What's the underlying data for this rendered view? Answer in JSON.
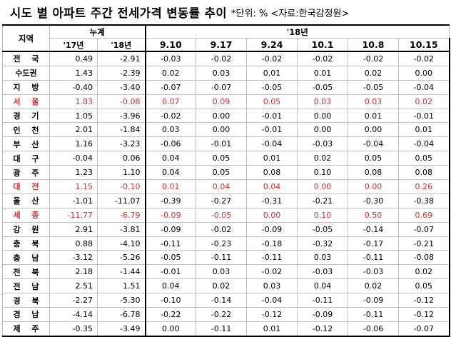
{
  "title": {
    "main": "시도 별 아파트 주간 전세가격 변동률 추이",
    "unit_note": "*단위: % <자료:한국감정원>"
  },
  "table": {
    "region_header": "지역",
    "accumulated_header": "누계",
    "year18_header": "'18년",
    "acc_columns": [
      "'17년",
      "'18년"
    ],
    "week_columns": [
      "9.10",
      "9.17",
      "9.24",
      "10.1",
      "10.8",
      "10.15"
    ],
    "rows": [
      {
        "region": "전 국",
        "acc": [
          "0.49",
          "-2.91"
        ],
        "weeks": [
          "-0.03",
          "-0.02",
          "-0.02",
          "-0.02",
          "-0.02",
          "-0.02"
        ],
        "highlight": false
      },
      {
        "region": "수도권",
        "acc": [
          "1.43",
          "-2.39"
        ],
        "weeks": [
          "0.02",
          "0.03",
          "0.01",
          "0.01",
          "0.02",
          "0.00"
        ],
        "highlight": false
      },
      {
        "region": "지 방",
        "acc": [
          "-0.40",
          "-3.40"
        ],
        "weeks": [
          "-0.07",
          "-0.07",
          "-0.05",
          "-0.05",
          "-0.05",
          "-0.04"
        ],
        "highlight": false
      },
      {
        "region": "서 울",
        "acc": [
          "1.83",
          "-0.08"
        ],
        "weeks": [
          "0.07",
          "0.09",
          "0.05",
          "0.03",
          "0.03",
          "0.02"
        ],
        "highlight": true
      },
      {
        "region": "경 기",
        "acc": [
          "1.05",
          "-3.96"
        ],
        "weeks": [
          "-0.02",
          "0.00",
          "-0.01",
          "0.00",
          "0.01",
          "-0.01"
        ],
        "highlight": false
      },
      {
        "region": "인 천",
        "acc": [
          "2.01",
          "-1.84"
        ],
        "weeks": [
          "0.03",
          "0.00",
          "-0.01",
          "0.00",
          "0.00",
          "0.01"
        ],
        "highlight": false
      },
      {
        "region": "부 산",
        "acc": [
          "1.16",
          "-3.23"
        ],
        "weeks": [
          "-0.06",
          "-0.01",
          "-0.04",
          "-0.03",
          "-0.04",
          "-0.04"
        ],
        "highlight": false
      },
      {
        "region": "대 구",
        "acc": [
          "-0.04",
          "0.06"
        ],
        "weeks": [
          "0.04",
          "0.05",
          "0.01",
          "0.02",
          "0.05",
          "0.05"
        ],
        "highlight": false
      },
      {
        "region": "광 주",
        "acc": [
          "1.23",
          "1.10"
        ],
        "weeks": [
          "0.04",
          "0.05",
          "0.08",
          "0.10",
          "0.08",
          "0.08"
        ],
        "highlight": false
      },
      {
        "region": "대 전",
        "acc": [
          "1.15",
          "-0.10"
        ],
        "weeks": [
          "0.01",
          "0.04",
          "0.04",
          "0.00",
          "0.00",
          "0.26"
        ],
        "highlight": true
      },
      {
        "region": "울 산",
        "acc": [
          "-1.01",
          "-11.07"
        ],
        "weeks": [
          "-0.39",
          "-0.27",
          "-0.31",
          "-0.21",
          "-0.30",
          "-0.38"
        ],
        "highlight": false
      },
      {
        "region": "세 종",
        "acc": [
          "-11.77",
          "-6.79"
        ],
        "weeks": [
          "-0.09",
          "-0.05",
          "0.00",
          "0.10",
          "0.50",
          "0.69"
        ],
        "highlight": true
      },
      {
        "region": "강 원",
        "acc": [
          "2.91",
          "-3.81"
        ],
        "weeks": [
          "-0.09",
          "-0.02",
          "-0.09",
          "-0.05",
          "-0.14",
          "-0.07"
        ],
        "highlight": false
      },
      {
        "region": "충 북",
        "acc": [
          "0.88",
          "-4.10"
        ],
        "weeks": [
          "-0.11",
          "-0.23",
          "-0.18",
          "-0.32",
          "-0.17",
          "-0.21"
        ],
        "highlight": false
      },
      {
        "region": "충 남",
        "acc": [
          "-3.12",
          "-5.26"
        ],
        "weeks": [
          "-0.05",
          "-0.11",
          "-0.11",
          "0.03",
          "-0.11",
          "-0.08"
        ],
        "highlight": false
      },
      {
        "region": "전 북",
        "acc": [
          "2.18",
          "-1.44"
        ],
        "weeks": [
          "-0.01",
          "0.03",
          "-0.02",
          "-0.03",
          "-0.03",
          "0.02"
        ],
        "highlight": false
      },
      {
        "region": "전 남",
        "acc": [
          "2.51",
          "1.51"
        ],
        "weeks": [
          "0.04",
          "0.02",
          "0.03",
          "0.04",
          "0.02",
          "0.05"
        ],
        "highlight": false
      },
      {
        "region": "경 북",
        "acc": [
          "-2.27",
          "-5.30"
        ],
        "weeks": [
          "-0.10",
          "-0.14",
          "-0.04",
          "-0.11",
          "-0.09",
          "-0.12"
        ],
        "highlight": false
      },
      {
        "region": "경 남",
        "acc": [
          "-4.14",
          "-6.78"
        ],
        "weeks": [
          "-0.22",
          "-0.22",
          "-0.12",
          "-0.09",
          "-0.11",
          "-0.12"
        ],
        "highlight": false
      },
      {
        "region": "제 주",
        "acc": [
          "-0.35",
          "-3.49"
        ],
        "weeks": [
          "0.00",
          "-0.11",
          "0.01",
          "-0.12",
          "-0.06",
          "-0.07"
        ],
        "highlight": false
      }
    ]
  },
  "colors": {
    "highlight_text": "#d32f2f",
    "grid": "#bfbfbf",
    "rule": "#000000"
  }
}
